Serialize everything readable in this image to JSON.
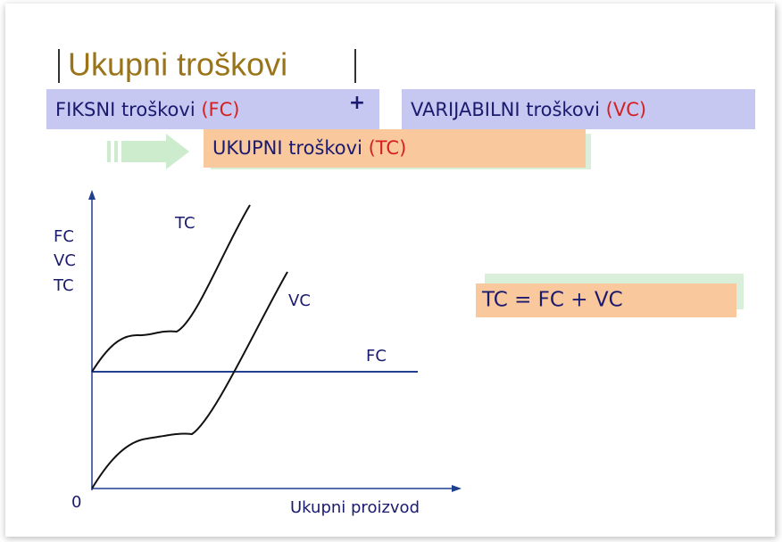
{
  "title": "Ukupni troškovi",
  "formula_row": {
    "fixed": {
      "text": "FIKSNI troškovi",
      "abbr": "(FC)"
    },
    "plus": "+",
    "variable": {
      "text": "VARIJABILNI troškovi",
      "abbr": "(VC)"
    },
    "total": {
      "text": "UKUPNI troškovi",
      "abbr": "(TC)"
    }
  },
  "graph": {
    "y_axis_label": [
      "FC",
      "VC",
      "TC"
    ],
    "origin": "0",
    "x_axis_label": "Ukupni proizvod",
    "curves": {
      "tc": "TC",
      "vc": "VC",
      "fc": "FC"
    }
  },
  "equation": "TC = FC + VC"
}
